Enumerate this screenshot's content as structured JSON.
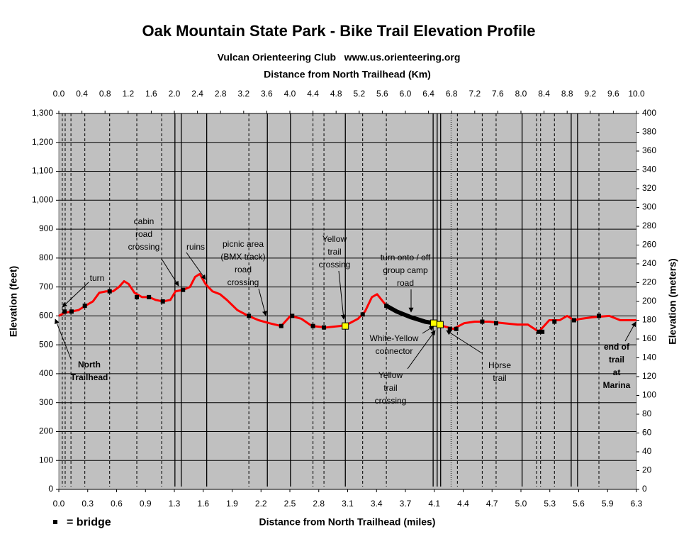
{
  "chart_data": {
    "type": "line",
    "title": "Oak Mountain State Park - Bike Trail Elevation Profile",
    "subtitle": "Vulcan Orienteering Club   www.us.orienteering.org",
    "x_label_top": "Distance from North Trailhead (Km)",
    "x_label": "Distance from North Trailhead (miles)",
    "y_label": "Elevation (feet)",
    "y2_label": "Elevation (meters)",
    "bridge_legend": "= bridge",
    "xlim": [
      0,
      10
    ],
    "xticks": [
      {
        "value": 0,
        "label": "0.0"
      },
      0.4,
      0.8,
      1.2,
      1.6,
      {
        "value": 2,
        "label": "2.0"
      },
      2.4,
      2.8,
      3.2,
      3.6,
      {
        "value": 4,
        "label": "4.0"
      },
      4.4,
      4.8,
      5.2,
      5.6,
      {
        "value": 6,
        "label": "6.0"
      },
      6.4,
      6.8,
      7.2,
      7.6,
      {
        "value": 8,
        "label": "8.0"
      },
      8.4,
      8.8,
      9.2,
      9.6,
      {
        "value": 10,
        "label": "10.0"
      }
    ],
    "x2lim": [
      0,
      6.3
    ],
    "x2ticks": [
      {
        "value": 0,
        "label": "0.0"
      },
      {
        "value": 0.315,
        "label": "0.3"
      },
      {
        "value": 0.63,
        "label": "0.6"
      },
      {
        "value": 0.945,
        "label": "0.9"
      },
      {
        "value": 1.26,
        "label": "1.3"
      },
      {
        "value": 1.575,
        "label": "1.6"
      },
      {
        "value": 1.89,
        "label": "1.9"
      },
      {
        "value": 2.205,
        "label": "2.2"
      },
      {
        "value": 2.52,
        "label": "2.5"
      },
      {
        "value": 2.835,
        "label": "2.8"
      },
      {
        "value": 3.15,
        "label": "3.1"
      },
      {
        "value": 3.465,
        "label": "3.4"
      },
      {
        "value": 3.78,
        "label": "3.7"
      },
      {
        "value": 4.095,
        "label": "4.1"
      },
      {
        "value": 4.41,
        "label": "4.4"
      },
      {
        "value": 4.725,
        "label": "4.7"
      },
      {
        "value": 5.04,
        "label": "5.0"
      },
      {
        "value": 5.355,
        "label": "5.3"
      },
      {
        "value": 5.67,
        "label": "5.6"
      },
      {
        "value": 5.985,
        "label": "5.9"
      },
      {
        "value": 6.3,
        "label": "6.3"
      }
    ],
    "ylim": [
      0,
      1300
    ],
    "yticks": [
      0,
      100,
      200,
      300,
      400,
      500,
      600,
      700,
      800,
      900,
      {
        "value": 1000,
        "label": "1,000"
      },
      {
        "value": 1100,
        "label": "1,100"
      },
      {
        "value": 1200,
        "label": "1,200"
      },
      {
        "value": 1300,
        "label": "1,300"
      }
    ],
    "y2lim": [
      0,
      400
    ],
    "y2ticks": [
      0,
      20,
      40,
      60,
      80,
      100,
      120,
      140,
      160,
      180,
      200,
      220,
      240,
      260,
      280,
      300,
      320,
      340,
      360,
      380,
      400
    ],
    "grid": true,
    "series": [
      {
        "color": "#ff0000",
        "x": [
          0,
          0.09,
          0.21,
          0.34,
          0.46,
          0.59,
          0.7,
          0.82,
          0.94,
          1.04,
          1.13,
          1.21,
          1.31,
          1.44,
          1.56,
          1.68,
          1.8,
          1.93,
          2.02,
          2.15,
          2.27,
          2.36,
          2.44,
          2.54,
          2.66,
          2.79,
          2.91,
          3.09,
          3.28,
          3.46,
          3.64,
          3.85,
          4.01,
          4.2,
          4.38,
          4.63,
          4.87,
          4.99,
          5.18,
          5.3,
          5.42,
          5.51,
          5.61,
          5.67,
          5.85,
          6.1,
          6.34,
          6.49,
          6.65,
          6.83,
          7.02,
          7.2,
          7.45,
          7.69,
          7.94,
          8.12,
          8.31,
          8.49,
          8.67,
          8.8,
          8.92,
          9.04,
          9.23,
          9.53,
          9.72,
          10.0
        ],
        "values": [
          600,
          610,
          615,
          620,
          635,
          650,
          680,
          685,
          685,
          700,
          720,
          710,
          680,
          665,
          665,
          655,
          650,
          655,
          685,
          690,
          700,
          735,
          745,
          710,
          685,
          675,
          655,
          620,
          600,
          585,
          575,
          565,
          600,
          590,
          565,
          560,
          565,
          570,
          590,
          615,
          665,
          675,
          650,
          635,
          615,
          595,
          580,
          575,
          565,
          555,
          575,
          580,
          580,
          575,
          570,
          570,
          545,
          585,
          585,
          600,
          585,
          590,
          595,
          600,
          585,
          585
        ]
      },
      {
        "color": "#000000",
        "x": [
          5.67,
          5.85,
          6.1,
          6.34,
          6.49
        ],
        "values": [
          635,
          615,
          595,
          580,
          575
        ]
      }
    ],
    "bridges": {
      "color": "#000000",
      "x": [
        0.1,
        0.22,
        0.45,
        0.88,
        1.35,
        1.56,
        1.8,
        2.15,
        3.29,
        3.85,
        4.04,
        4.4,
        4.59,
        5.26,
        5.67,
        6.77,
        6.88,
        7.33,
        7.57,
        8.31,
        8.37,
        8.58,
        8.92,
        9.35
      ],
      "values": [
        615,
        615,
        635,
        685,
        665,
        665,
        650,
        690,
        600,
        565,
        600,
        565,
        560,
        605,
        635,
        555,
        555,
        580,
        575,
        545,
        545,
        580,
        585,
        600
      ]
    },
    "crossings": {
      "color": "#ffff00",
      "x": [
        4.96,
        6.49,
        6.6
      ],
      "values": [
        565,
        575,
        570
      ]
    },
    "dashed_lines": [
      0.06,
      0.11,
      0.21,
      0.45,
      0.88,
      1.35,
      1.78,
      3.29,
      4.4,
      4.59,
      5.26,
      5.67,
      6.9,
      7.33,
      7.57,
      8.27,
      8.34,
      8.58,
      9.35
    ],
    "solid_lines": [
      2.01,
      2.12,
      2.56,
      3.61,
      4.01,
      4.96,
      6.48,
      6.55,
      6.61,
      8.02,
      8.87,
      8.98
    ],
    "dotted_lines": [
      6.79
    ],
    "annotations": [
      {
        "text": [
          "turn"
        ]
      },
      {
        "text": [
          "cabin",
          "road",
          "crossing"
        ]
      },
      {
        "text": [
          "ruins"
        ]
      },
      {
        "text": [
          "picnic area",
          "(BMX track)",
          "road",
          "crossing"
        ]
      },
      {
        "text": [
          "Yellow",
          "trail",
          "crossing"
        ]
      },
      {
        "text": [
          "turn onto / off",
          "group camp",
          "road"
        ]
      },
      {
        "text": [
          "White-Yellow",
          "connector"
        ]
      },
      {
        "text": [
          "Yellow",
          "trail",
          "crossing"
        ]
      },
      {
        "text": [
          "Horse",
          "trail"
        ]
      },
      {
        "text": [
          "North",
          "Trailhead"
        ]
      },
      {
        "text": [
          "end of",
          "trail",
          "at",
          "Marina"
        ]
      }
    ]
  }
}
